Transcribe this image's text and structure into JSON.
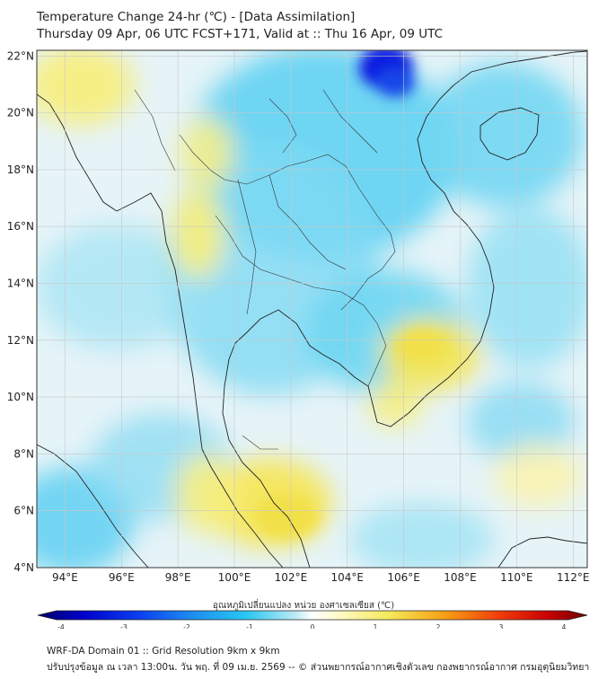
{
  "header": {
    "title": "Temperature Change 24-hr (℃) - [Data Assimilation]",
    "subtitle": "Thursday 09 Apr, 06 UTC FCST+171, Valid at :: Thu 16 Apr, 09 UTC"
  },
  "map": {
    "lat_ticks": [
      "22°N",
      "20°N",
      "18°N",
      "16°N",
      "14°N",
      "12°N",
      "10°N",
      "8°N",
      "6°N",
      "4°N"
    ],
    "lon_ticks": [
      "94°E",
      "96°E",
      "98°E",
      "100°E",
      "102°E",
      "104°E",
      "106°E",
      "108°E",
      "110°E",
      "112°E"
    ],
    "lat_range": [
      4,
      22.2
    ],
    "lon_range": [
      93,
      112.5
    ],
    "colors": {
      "grid": "#c8c8c8",
      "coast": "#222222",
      "cool_strong": "#0a1ee0",
      "cool": "#28c8f0",
      "neutral": "#e8f4f8",
      "warm": "#f5e85a"
    }
  },
  "colorbar": {
    "label": "อุณหภูมิเปลี่ยนแปลง หน่วย องศาเซลเซียส (℃)",
    "ticks": [
      "-4",
      "-3",
      "-2",
      "-1",
      "0",
      "1",
      "2",
      "3",
      "4"
    ],
    "min": -4,
    "max": 4
  },
  "footer": {
    "line1": "WRF-DA Domain 01 :: Grid Resolution 9km x 9km",
    "line2": "ปรับปรุงข้อมูล ณ เวลา 13:00น. วัน พฤ. ที่ 09 เม.ย. 2569 -- © ส่วนพยากรณ์อากาศเชิงตัวเลข กองพยากรณ์อากาศ กรมอุตุนิยมวิทยา"
  }
}
